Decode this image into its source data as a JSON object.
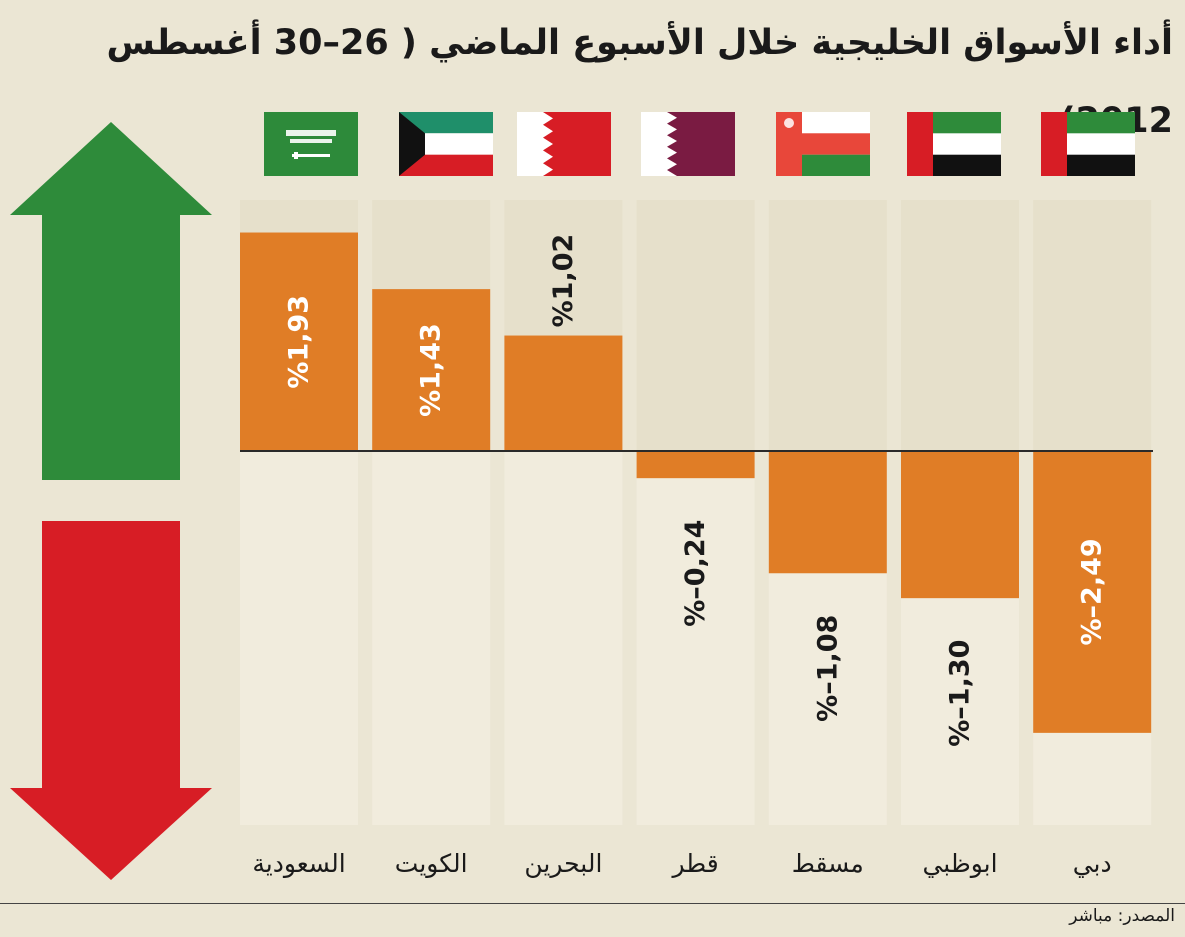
{
  "title": "أداء الأسواق الخليجية خلال الأسبوع الماضي ( 26–30 أغسطس 2012)",
  "source": "المصدر: مباشر",
  "colors": {
    "background": "#ebe6d4",
    "column_bg": "#e6e0cb",
    "column_bg_neg": "#f1ecdd",
    "bar": "#e07d26",
    "up_arrow": "#2e8b3a",
    "down_arrow": "#d71d25",
    "baseline": "#2a2a2a"
  },
  "icons": {
    "up": "up-arrow-icon",
    "down": "down-arrow-icon"
  },
  "chart_data": {
    "type": "bar",
    "title": "أداء الأسواق الخليجية خلال الأسبوع الماضي ( 26–30 أغسطس 2012)",
    "unit": "%",
    "categories": [
      "السعودية",
      "الكويت",
      "البحرين",
      "قطر",
      "مسقط",
      "ابوظبي",
      "دبي"
    ],
    "values": [
      1.93,
      1.43,
      1.02,
      -0.24,
      -1.08,
      -1.3,
      -2.49
    ],
    "labels": [
      "%1,93",
      "%1,43",
      "%1,02",
      "%–0,24",
      "%–1,08",
      "%–1,30",
      "%–2,49"
    ],
    "flags": [
      "saudi-flag-icon",
      "kuwait-flag-icon",
      "bahrain-flag-icon",
      "qatar-flag-icon",
      "oman-flag-icon",
      "uae-flag-icon",
      "uae-flag-icon"
    ],
    "ylim": [
      -2.49,
      1.93
    ],
    "grid": false,
    "legend": "none"
  }
}
